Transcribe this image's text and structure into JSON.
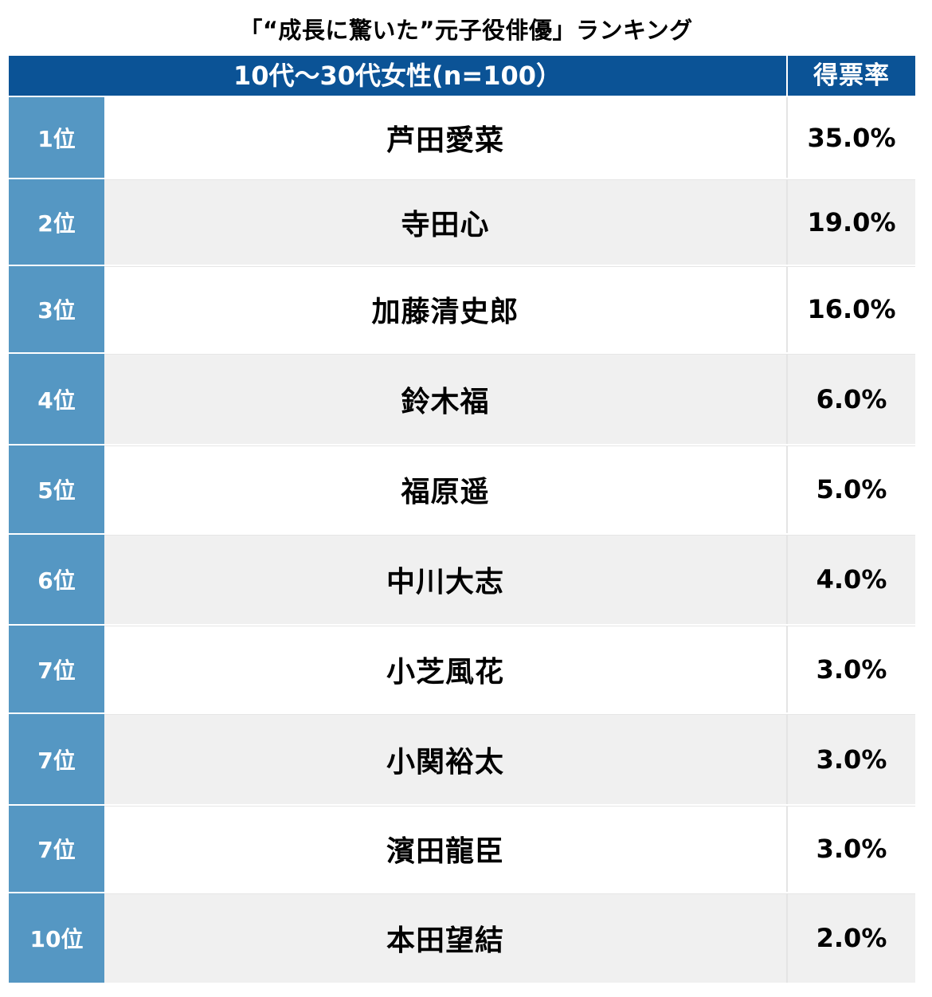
{
  "title": "「“成長に驚いた”元子役俳優」ランキング",
  "header": {
    "group_label": "10代〜30代女性(n=100）",
    "rate_label": "得票率"
  },
  "rows": [
    {
      "rank": "1位",
      "name": "芦田愛菜",
      "rate": "35.0%"
    },
    {
      "rank": "2位",
      "name": "寺田心",
      "rate": "19.0%"
    },
    {
      "rank": "3位",
      "name": "加藤清史郎",
      "rate": "16.0%"
    },
    {
      "rank": "4位",
      "name": "鈴木福",
      "rate": "6.0%"
    },
    {
      "rank": "5位",
      "name": "福原遥",
      "rate": "5.0%"
    },
    {
      "rank": "6位",
      "name": "中川大志",
      "rate": "4.0%"
    },
    {
      "rank": "7位",
      "name": "小芝風花",
      "rate": "3.0%"
    },
    {
      "rank": "7位",
      "name": "小関裕太",
      "rate": "3.0%"
    },
    {
      "rank": "7位",
      "name": "濱田龍臣",
      "rate": "3.0%"
    },
    {
      "rank": "10位",
      "name": "本田望結",
      "rate": "2.0%"
    }
  ],
  "colors": {
    "header_bg": "#0b5396",
    "rank_bg": "#5597c3",
    "alt_row_bg": "#f0f0f0"
  },
  "chart_data": {
    "type": "table",
    "title": "「“成長に驚いた”元子役俳優」ランキング",
    "columns": [
      "10代〜30代女性(n=100）",
      "得票率"
    ],
    "categories": [
      "芦田愛菜",
      "寺田心",
      "加藤清史郎",
      "鈴木福",
      "福原遥",
      "中川大志",
      "小芝風花",
      "小関裕太",
      "濱田龍臣",
      "本田望結"
    ],
    "ranks": [
      "1位",
      "2位",
      "3位",
      "4位",
      "5位",
      "6位",
      "7位",
      "7位",
      "7位",
      "10位"
    ],
    "values": [
      35.0,
      19.0,
      16.0,
      6.0,
      5.0,
      4.0,
      3.0,
      3.0,
      3.0,
      2.0
    ],
    "unit": "%"
  }
}
